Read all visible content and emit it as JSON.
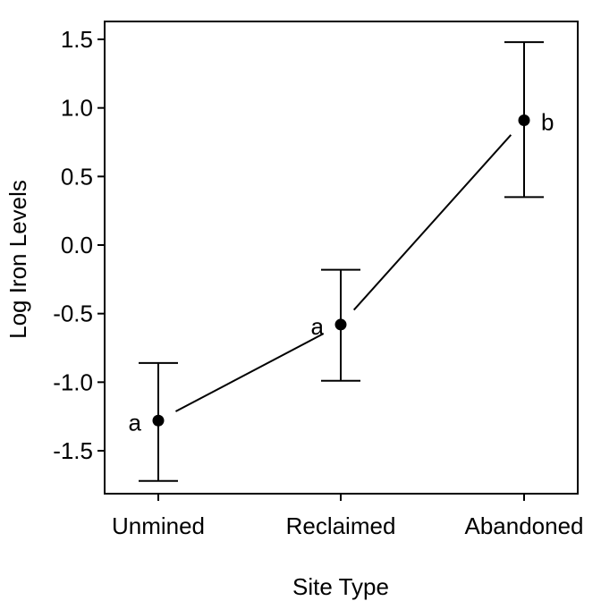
{
  "chart_data": {
    "type": "scatter",
    "xlabel": "Site Type",
    "ylabel": "Log Iron Levels",
    "categories": [
      "Unmined",
      "Reclaimed",
      "Abandoned"
    ],
    "ylim": [
      -1.85,
      1.6
    ],
    "yticks": [
      1.5,
      1.0,
      0.5,
      0.0,
      -0.5,
      -1.0,
      -1.5
    ],
    "ytick_labels": [
      "1.5",
      "1.0",
      "0.5",
      "0.0",
      "-0.5",
      "-1.0",
      "-1.5"
    ],
    "grid": false,
    "legend": "none",
    "points": [
      {
        "category": "Unmined",
        "mean": -1.28,
        "lower": -1.72,
        "upper": -0.86,
        "group": "a"
      },
      {
        "category": "Reclaimed",
        "mean": -0.58,
        "lower": -0.99,
        "upper": -0.18,
        "group": "a"
      },
      {
        "category": "Abandoned",
        "mean": 0.91,
        "lower": 0.35,
        "upper": 1.48,
        "group": "b"
      }
    ],
    "connect_means": true,
    "colors": {
      "marker": "#000000",
      "line": "#000000",
      "frame": "#000000"
    }
  }
}
